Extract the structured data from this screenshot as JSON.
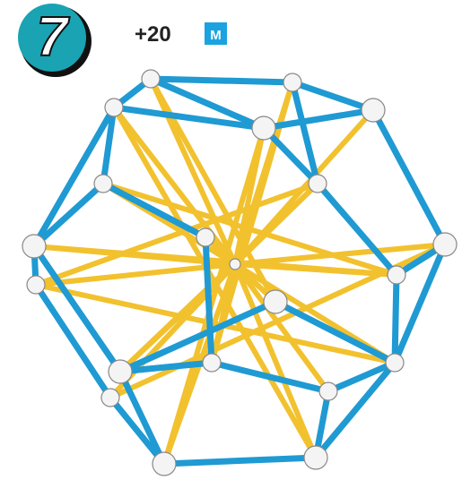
{
  "step": "7",
  "count": "+20",
  "badge": "M"
}
